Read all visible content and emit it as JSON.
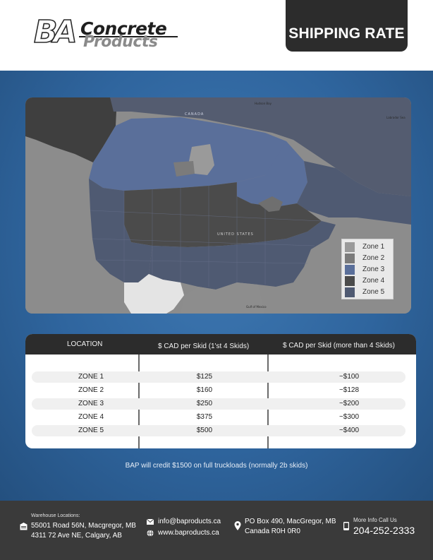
{
  "header": {
    "logo_mark": "BA",
    "logo_word1": "Concrete",
    "logo_word2": "Products",
    "tab_title": "SHIPPING RATE"
  },
  "map": {
    "labels": {
      "hudson_bay": "Hudson Bay",
      "labrador_sea": "Labrador Sea",
      "canada": "CANADA",
      "united_states": "UNITED STATES",
      "gulf": "Gulf of Mexico"
    },
    "legend": [
      {
        "label": "Zone 1",
        "color": "#9a9a9a"
      },
      {
        "label": "Zone 2",
        "color": "#7b7b7b"
      },
      {
        "label": "Zone 3",
        "color": "#5a6f9a"
      },
      {
        "label": "Zone 4",
        "color": "#4b4b4b"
      },
      {
        "label": "Zone 5",
        "color": "#4f5a72"
      }
    ]
  },
  "table": {
    "headers": [
      "LOCATION",
      "$ CAD per Skid (1'st 4 Skids)",
      "$ CAD per Skid (more than 4 Skids)"
    ],
    "rows": [
      {
        "zone": "ZONE 1",
        "first4": "$125",
        "more": "~$100"
      },
      {
        "zone": "ZONE 2",
        "first4": "$160",
        "more": "~$128"
      },
      {
        "zone": "ZONE 3",
        "first4": "$250",
        "more": "~$200"
      },
      {
        "zone": "ZONE 4",
        "first4": "$375",
        "more": "~$300"
      },
      {
        "zone": "ZONE 5",
        "first4": "$500",
        "more": "~$400"
      }
    ]
  },
  "credit_note": "BAP will credit $1500 on full truckloads (normally 2b skids)",
  "footer": {
    "warehouse_title": "Warehouse Locations:",
    "warehouse_1": "55001 Road 56N, Macgregor, MB",
    "warehouse_2": "4311 72 Ave NE, Calgary, AB",
    "email": "info@baproducts.ca",
    "website": "www.baproducts.ca",
    "po_1": "PO Box 490, MacGregor, MB",
    "po_2": "Canada R0H 0R0",
    "call_label": "More Info Call Us",
    "phone": "204-252-2333"
  },
  "colors": {
    "accent_dark": "#2c2c2c",
    "panel_blue": "#2f659e",
    "footer_bg": "#3a3a3a"
  }
}
